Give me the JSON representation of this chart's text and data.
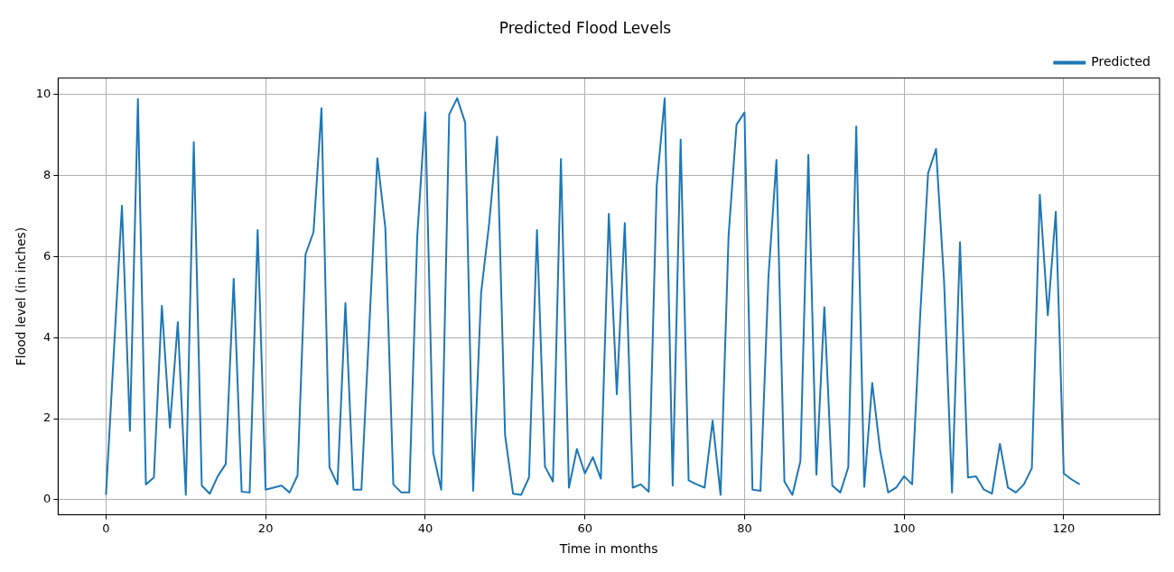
{
  "chart_data": {
    "type": "line",
    "title": "Predicted Flood Levels",
    "xlabel": "Time in months",
    "ylabel": "Flood level (in inches)",
    "x": [
      0,
      1,
      2,
      3,
      4,
      5,
      6,
      7,
      8,
      9,
      10,
      11,
      12,
      13,
      14,
      15,
      16,
      17,
      18,
      19,
      20,
      21,
      22,
      23,
      24,
      25,
      26,
      27,
      28,
      29,
      30,
      31,
      32,
      33,
      34,
      35,
      36,
      37,
      38,
      39,
      40,
      41,
      42,
      43,
      44,
      45,
      46,
      47,
      48,
      49,
      50,
      51,
      52,
      53,
      54,
      55,
      56,
      57,
      58,
      59,
      60,
      61,
      62,
      63,
      64,
      65,
      66,
      67,
      68,
      69,
      70,
      71,
      72,
      73,
      74,
      75,
      76,
      77,
      78,
      79,
      80,
      81,
      82,
      83,
      84,
      85,
      86,
      87,
      88,
      89,
      90,
      91,
      92,
      93,
      94,
      95,
      96,
      97,
      98,
      99,
      100,
      101,
      102,
      103,
      104,
      105,
      106,
      107,
      108,
      109,
      110,
      111,
      112,
      113,
      114,
      115,
      116,
      117,
      118,
      119,
      120,
      121,
      122
    ],
    "series": [
      {
        "name": "Predicted",
        "color": "#1f77b4",
        "values": [
          0.12,
          3.7,
          7.25,
          1.7,
          9.88,
          0.38,
          0.55,
          4.78,
          1.78,
          4.38,
          0.12,
          8.82,
          0.35,
          0.15,
          0.58,
          0.88,
          5.45,
          0.2,
          0.18,
          6.65,
          0.25,
          0.3,
          0.35,
          0.18,
          0.6,
          6.05,
          6.6,
          9.65,
          0.8,
          0.38,
          4.85,
          0.25,
          0.25,
          4.3,
          8.42,
          6.7,
          0.38,
          0.18,
          0.18,
          6.5,
          9.55,
          1.15,
          0.25,
          9.5,
          9.9,
          9.3,
          0.22,
          5.1,
          6.8,
          8.95,
          1.6,
          0.15,
          0.12,
          0.55,
          6.65,
          0.82,
          0.45,
          8.4,
          0.3,
          1.25,
          0.65,
          1.05,
          0.52,
          7.05,
          2.6,
          6.82,
          0.3,
          0.38,
          0.2,
          7.75,
          9.9,
          0.35,
          8.88,
          0.48,
          0.38,
          0.3,
          1.95,
          0.12,
          6.5,
          9.25,
          9.55,
          0.25,
          0.22,
          5.5,
          8.38,
          0.45,
          0.12,
          0.95,
          8.5,
          0.62,
          4.75,
          0.35,
          0.18,
          0.8,
          9.2,
          0.32,
          2.88,
          1.2,
          0.18,
          0.3,
          0.58,
          0.38,
          4.5,
          8.05,
          8.65,
          5.4,
          0.18,
          6.35,
          0.55,
          0.58,
          0.25,
          0.15,
          1.38,
          0.3,
          0.18,
          0.38,
          0.78,
          7.52,
          4.55,
          7.1,
          0.65,
          0.5,
          0.38
        ]
      }
    ],
    "xlim": [
      -6,
      132
    ],
    "ylim": [
      -0.37,
      10.4
    ],
    "xticks": [
      0,
      20,
      40,
      60,
      80,
      100,
      120
    ],
    "yticks": [
      0,
      2,
      4,
      6,
      8,
      10
    ],
    "grid": true,
    "legend": "top right",
    "marker": "none",
    "line_style": "solid"
  }
}
